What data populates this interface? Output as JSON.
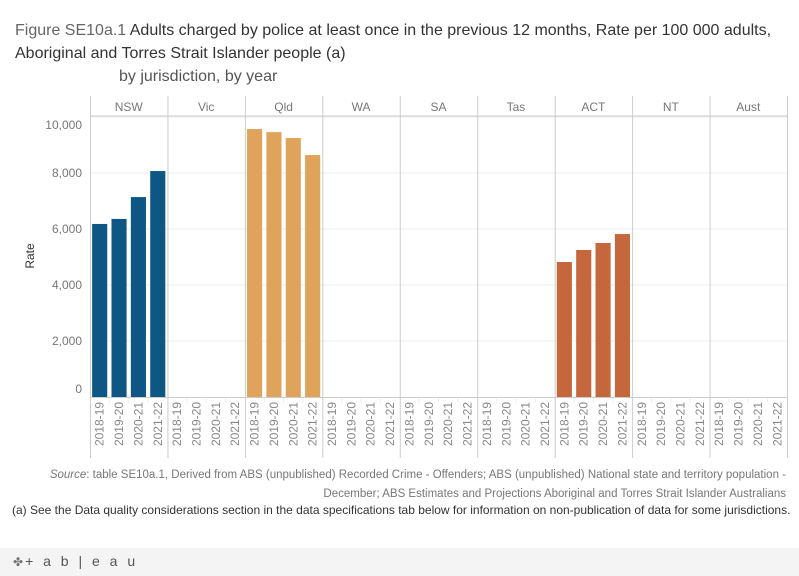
{
  "title": {
    "prefix": "Figure SE10a.1",
    "main": "Adults charged by police at least once in the previous 12 months, Rate per 100 000 adults, Aboriginal and Torres Strait Islander people (a)",
    "subtitle": "by jurisdiction, by year"
  },
  "chart_data": {
    "type": "bar",
    "title": "Adults charged by police at least once in the previous 12 months, Rate per 100 000 adults, Aboriginal and Torres Strait Islander people (a)",
    "subtitle": "by jurisdiction, by year",
    "xlabel": "",
    "ylabel": "Rate",
    "ylim": [
      0,
      10000
    ],
    "yticks": [
      0,
      2000,
      4000,
      6000,
      8000,
      10000
    ],
    "ytick_labels": [
      "0",
      "2,000",
      "4,000",
      "6,000",
      "8,000",
      "10,000"
    ],
    "grid": true,
    "legend": "none",
    "categories": [
      "2018-19",
      "2019-20",
      "2020-21",
      "2021-22"
    ],
    "panels": [
      {
        "name": "NSW",
        "color": "#0e5784",
        "values": [
          6180,
          6360,
          7140,
          8070
        ]
      },
      {
        "name": "Vic",
        "color": "#888888",
        "values": [
          null,
          null,
          null,
          null
        ]
      },
      {
        "name": "Qld",
        "color": "#e0a35c",
        "values": [
          9570,
          9460,
          9250,
          8640
        ]
      },
      {
        "name": "WA",
        "color": "#888888",
        "values": [
          null,
          null,
          null,
          null
        ]
      },
      {
        "name": "SA",
        "color": "#888888",
        "values": [
          null,
          null,
          null,
          null
        ]
      },
      {
        "name": "Tas",
        "color": "#888888",
        "values": [
          null,
          null,
          null,
          null
        ]
      },
      {
        "name": "ACT",
        "color": "#c4673c",
        "values": [
          4820,
          5250,
          5500,
          5820
        ]
      },
      {
        "name": "NT",
        "color": "#888888",
        "values": [
          null,
          null,
          null,
          null
        ]
      },
      {
        "name": "Aust",
        "color": "#888888",
        "values": [
          null,
          null,
          null,
          null
        ]
      }
    ]
  },
  "source": {
    "label": "Source",
    "text": ": table SE10a.1, Derived from ABS (unpublished) Recorded Crime - Offenders; ABS (unpublished) National state and territory population - December; ABS Estimates and Projections Aboriginal and Torres Strait Islander Australians"
  },
  "note": "(a) See the Data quality considerations section in the data specifications tab below for information on non-publication of data for some jurisdictions.",
  "footer": {
    "logo_text": "+ a b | e a u",
    "logo_icon": "tableau-logo-icon"
  }
}
